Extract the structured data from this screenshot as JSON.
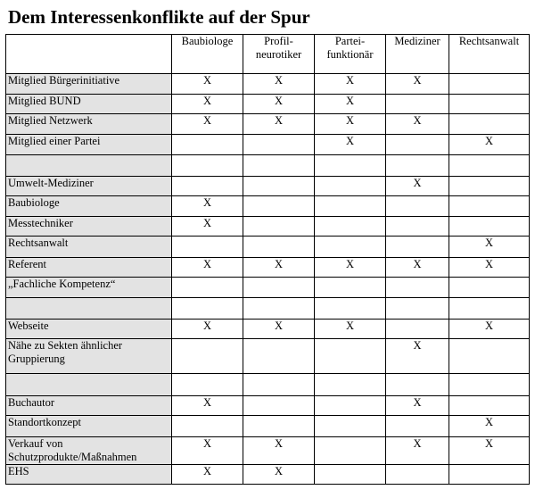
{
  "title": "Dem Interessenkonflikte auf der Spur",
  "columns": [
    "Baubiologe",
    "Profil-\nneurotiker",
    "Partei-\nfunktionär",
    "Mediziner",
    "Rechtsanwalt"
  ],
  "rows": [
    {
      "label": "Mitglied Bürgerinitiative",
      "cells": [
        "X",
        "X",
        "X",
        "X",
        ""
      ]
    },
    {
      "label": "Mitglied BUND",
      "cells": [
        "X",
        "X",
        "X",
        "",
        ""
      ]
    },
    {
      "label": "Mitglied Netzwerk",
      "cells": [
        "X",
        "X",
        "X",
        "X",
        ""
      ]
    },
    {
      "label": "Mitglied einer Partei",
      "cells": [
        "",
        "",
        "X",
        "",
        "X"
      ]
    },
    {
      "label": "",
      "cells": [
        "",
        "",
        "",
        "",
        ""
      ]
    },
    {
      "label": "Umwelt-Mediziner",
      "cells": [
        "",
        "",
        "",
        "X",
        ""
      ]
    },
    {
      "label": "Baubiologe",
      "cells": [
        "X",
        "",
        "",
        "",
        ""
      ]
    },
    {
      "label": "Messtechniker",
      "cells": [
        "X",
        "",
        "",
        "",
        ""
      ]
    },
    {
      "label": "Rechtsanwalt",
      "cells": [
        "",
        "",
        "",
        "",
        "X"
      ]
    },
    {
      "label": "Referent",
      "cells": [
        "X",
        "X",
        "X",
        "X",
        "X"
      ]
    },
    {
      "label": "„Fachliche Kompetenz“",
      "cells": [
        "",
        "",
        "",
        "",
        ""
      ]
    },
    {
      "label": "",
      "cells": [
        "",
        "",
        "",
        "",
        ""
      ]
    },
    {
      "label": "Webseite",
      "cells": [
        "X",
        "X",
        "X",
        "",
        "X"
      ]
    },
    {
      "label": "Nähe zu Sekten ähnlicher Gruppierung",
      "cells": [
        "",
        "",
        "",
        "X",
        ""
      ]
    },
    {
      "label": "",
      "cells": [
        "",
        "",
        "",
        "",
        ""
      ]
    },
    {
      "label": "Buchautor",
      "cells": [
        "X",
        "",
        "",
        "X",
        ""
      ]
    },
    {
      "label": "Standortkonzept",
      "cells": [
        "",
        "",
        "",
        "",
        "X"
      ]
    },
    {
      "label": "Verkauf von Schutzprodukte/Maßnahmen",
      "cells": [
        "X",
        "X",
        "",
        "X",
        "X"
      ]
    },
    {
      "label": "EHS",
      "cells": [
        "X",
        "X",
        "",
        "",
        ""
      ]
    }
  ]
}
